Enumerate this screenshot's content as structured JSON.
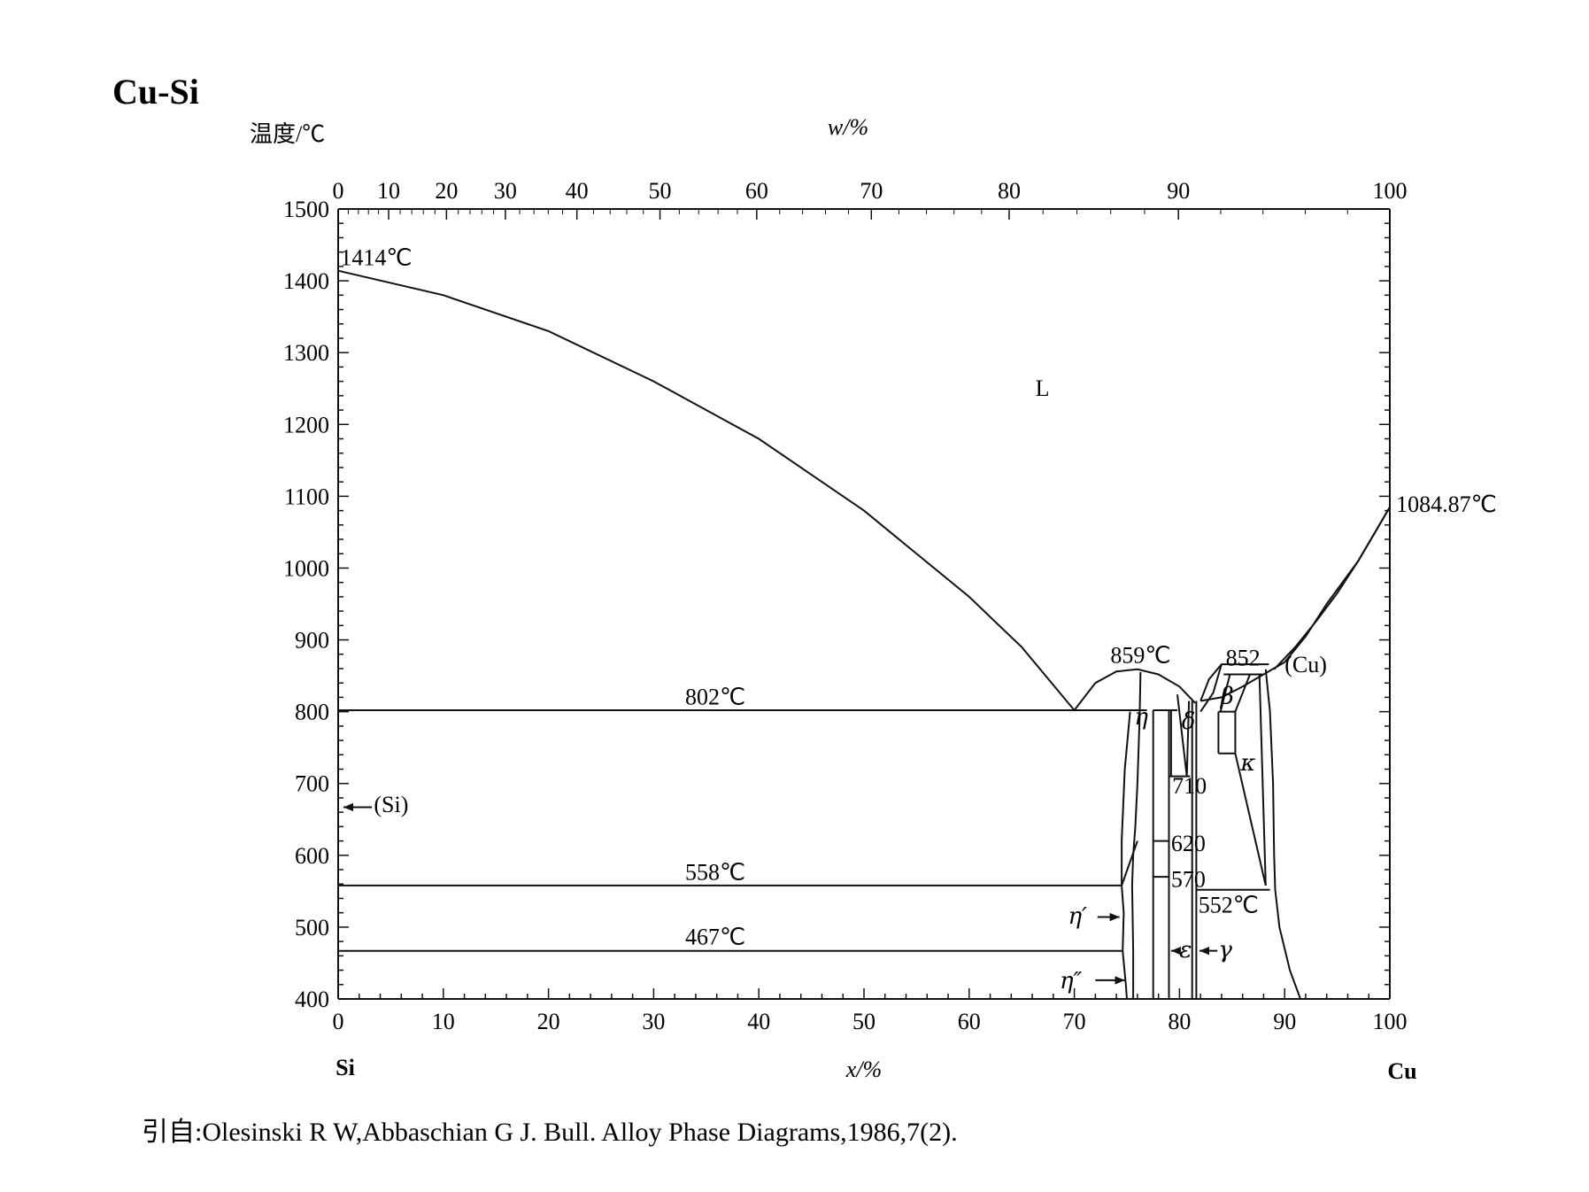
{
  "title": "Cu-Si",
  "citation": "引自:Olesinski R W,Abbaschian G J. Bull. Alloy Phase Diagrams,1986,7(2).",
  "chart_data": {
    "type": "line",
    "ylabel": "温度/℃",
    "xlabel": "x/%",
    "top_xlabel": "w/%",
    "x_end_labels": [
      "Si",
      "Cu"
    ],
    "xlim": [
      0,
      100
    ],
    "ylim": [
      400,
      1500
    ],
    "x_ticks": [
      0,
      10,
      20,
      30,
      40,
      50,
      60,
      70,
      80,
      90,
      100
    ],
    "y_ticks": [
      400,
      500,
      600,
      700,
      800,
      900,
      1000,
      1100,
      1200,
      1300,
      1400,
      1500
    ],
    "top_ticks": [
      {
        "label": "0",
        "x": 0
      },
      {
        "label": "10",
        "x": 4.8
      },
      {
        "label": "20",
        "x": 10.3
      },
      {
        "label": "30",
        "x": 15.9
      },
      {
        "label": "40",
        "x": 22.7
      },
      {
        "label": "50",
        "x": 30.6
      },
      {
        "label": "60",
        "x": 39.8
      },
      {
        "label": "70",
        "x": 50.7
      },
      {
        "label": "80",
        "x": 63.8
      },
      {
        "label": "90",
        "x": 79.9
      },
      {
        "label": "100",
        "x": 100
      }
    ],
    "series": [
      {
        "points": [
          [
            0,
            1414
          ],
          [
            10,
            1380
          ],
          [
            20,
            1330
          ],
          [
            30,
            1260
          ],
          [
            40,
            1180
          ],
          [
            50,
            1080
          ],
          [
            60,
            960
          ],
          [
            65,
            890
          ],
          [
            70,
            802
          ]
        ]
      },
      {
        "points": [
          [
            70,
            802
          ],
          [
            72,
            840
          ],
          [
            74,
            856
          ],
          [
            76,
            859
          ],
          [
            78,
            852
          ],
          [
            80,
            835
          ],
          [
            81.5,
            812
          ]
        ]
      },
      {
        "points": [
          [
            100,
            1084.87
          ],
          [
            97,
            1010
          ],
          [
            94,
            950
          ],
          [
            92,
            905
          ],
          [
            90,
            869
          ],
          [
            88,
            852
          ],
          [
            86,
            835
          ],
          [
            84,
            820
          ],
          [
            82,
            815
          ]
        ]
      },
      {
        "points": [
          [
            100,
            1084.87
          ],
          [
            97,
            1010
          ],
          [
            95,
            965
          ],
          [
            93,
            926
          ],
          [
            91,
            890
          ],
          [
            89,
            859
          ]
        ]
      },
      {
        "points": [
          [
            0,
            802
          ],
          [
            76.9,
            802
          ]
        ]
      },
      {
        "points": [
          [
            0,
            558
          ],
          [
            74.5,
            558
          ]
        ]
      },
      {
        "points": [
          [
            0,
            467
          ],
          [
            74.6,
            467
          ]
        ]
      },
      {
        "points": [
          [
            0,
            1414
          ],
          [
            0,
            400
          ]
        ]
      },
      {
        "points": [
          [
            74.5,
            558
          ],
          [
            74.7,
            520
          ],
          [
            74.6,
            467
          ],
          [
            74.9,
            420
          ],
          [
            75,
            400
          ]
        ]
      },
      {
        "points": [
          [
            75.3,
            800
          ],
          [
            74.8,
            720
          ],
          [
            74.5,
            620
          ],
          [
            74.5,
            558
          ]
        ]
      },
      {
        "points": [
          [
            76.3,
            855
          ],
          [
            76.2,
            790
          ],
          [
            76.0,
            700
          ],
          [
            75.8,
            640
          ],
          [
            75.6,
            600
          ],
          [
            75.5,
            558
          ],
          [
            75.6,
            467
          ],
          [
            75.6,
            400
          ]
        ]
      },
      {
        "points": [
          [
            74.5,
            558
          ],
          [
            76,
            620
          ]
        ]
      },
      {
        "points": [
          [
            77.5,
            802
          ],
          [
            79.8,
            802
          ]
        ]
      },
      {
        "points": [
          [
            77.5,
            802
          ],
          [
            77.5,
            400
          ]
        ]
      },
      {
        "points": [
          [
            79.0,
            802
          ],
          [
            79.0,
            400
          ]
        ]
      },
      {
        "points": [
          [
            77.5,
            620
          ],
          [
            79.0,
            620
          ]
        ]
      },
      {
        "points": [
          [
            77.5,
            570
          ],
          [
            79.0,
            570
          ]
        ]
      },
      {
        "points": [
          [
            79.2,
            802
          ],
          [
            79.2,
            710
          ]
        ]
      },
      {
        "points": [
          [
            79.0,
            710
          ],
          [
            81.0,
            710
          ]
        ]
      },
      {
        "points": [
          [
            79.8,
            824
          ],
          [
            80.7,
            710
          ]
        ]
      },
      {
        "points": [
          [
            80.9,
            815
          ],
          [
            80.7,
            710
          ]
        ]
      },
      {
        "points": [
          [
            81.2,
            815
          ],
          [
            81.2,
            400
          ]
        ]
      },
      {
        "points": [
          [
            81.6,
            815
          ],
          [
            81.6,
            400
          ]
        ]
      },
      {
        "points": [
          [
            81.6,
            552
          ],
          [
            88.6,
            552
          ]
        ]
      },
      {
        "points": [
          [
            82.0,
            815
          ],
          [
            82.8,
            845
          ],
          [
            84,
            866
          ],
          [
            88.5,
            866
          ]
        ]
      },
      {
        "points": [
          [
            84,
            866
          ],
          [
            83.2,
            826
          ],
          [
            82.0,
            800
          ]
        ]
      },
      {
        "points": [
          [
            84.2,
            852
          ],
          [
            87.9,
            852
          ]
        ]
      },
      {
        "points": [
          [
            84.8,
            852
          ],
          [
            83.9,
            800
          ]
        ]
      },
      {
        "points": [
          [
            83.7,
            800
          ],
          [
            85.3,
            800
          ]
        ]
      },
      {
        "points": [
          [
            85.3,
            800
          ],
          [
            85.3,
            742
          ]
        ]
      },
      {
        "points": [
          [
            83.7,
            800
          ],
          [
            83.7,
            742
          ]
        ]
      },
      {
        "points": [
          [
            83.7,
            742
          ],
          [
            85.3,
            742
          ]
        ]
      },
      {
        "points": [
          [
            86.7,
            852
          ],
          [
            85.3,
            800
          ]
        ]
      },
      {
        "points": [
          [
            85.3,
            742
          ],
          [
            88.2,
            558
          ]
        ]
      },
      {
        "points": [
          [
            87.6,
            852
          ],
          [
            88.2,
            558
          ]
        ]
      },
      {
        "points": [
          [
            88.2,
            859
          ],
          [
            88.6,
            800
          ],
          [
            88.9,
            700
          ],
          [
            89.0,
            600
          ],
          [
            89.1,
            552
          ],
          [
            89.5,
            500
          ],
          [
            90.5,
            440
          ],
          [
            91.5,
            400
          ]
        ]
      }
    ],
    "annotations": {
      "melt_si": "1414℃",
      "melt_cu": "1084.87℃",
      "liquid": "L",
      "eutectic_802": "802℃",
      "peritectoid_558": "558℃",
      "transition_467": "467℃",
      "congruent_859": "859℃",
      "t_852": "852",
      "t_710": "710",
      "t_620": "620",
      "t_570": "570",
      "t_552": "552℃",
      "si_phase": "(Si)",
      "cu_phase": "(Cu)",
      "eta": "η",
      "eta_prime": "η′",
      "eta_double": "η″",
      "delta": "δ",
      "beta": "β",
      "kappa": "κ",
      "epsilon": "ε",
      "gamma": "γ"
    }
  }
}
